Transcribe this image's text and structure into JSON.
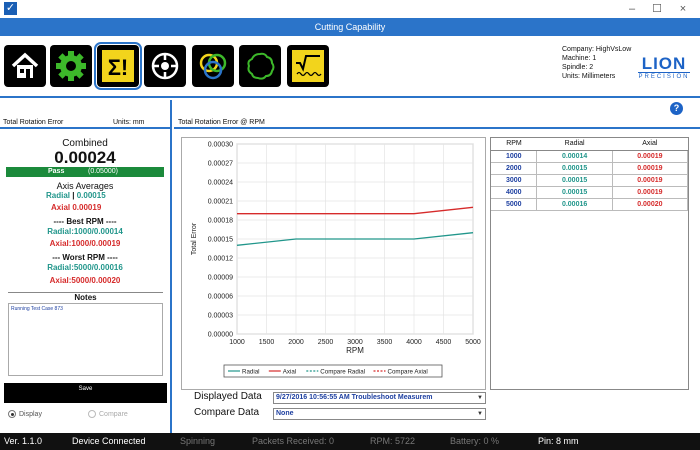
{
  "window": {
    "title": "Cutting Capability",
    "minimize": "–",
    "maximize": "☐",
    "close": "×"
  },
  "toolbar": {
    "buttons": [
      "home-icon",
      "gear-icon",
      "sigma-icon",
      "spindle-icon",
      "circles-icon",
      "lobed-circle-icon",
      "signal-icon"
    ]
  },
  "info": {
    "company": "Company: HighVsLow",
    "machine": "Machine: 1",
    "spindle": "Spindle: 2",
    "units": "Units: Millimeters"
  },
  "logo": {
    "line1": "LION",
    "line2": "PRECISION"
  },
  "left": {
    "header": "Total Rotation Error",
    "units": "Units: mm",
    "combined_label": "Combined",
    "combined_value": "0.00024",
    "pass_label": "Pass",
    "pass_threshold": "(0.05000)",
    "axis_averages_label": "Axis Averages",
    "radial_avg_label": "Radial",
    "radial_avg_value": "0.00015",
    "axial_avg_label": "Axial",
    "axial_avg_value": "0.00019",
    "best_rpm_label": "---- Best RPM ----",
    "best_radial": "Radial:1000/0.00014",
    "best_axial": "Axial:1000/0.00019",
    "worst_rpm_label": "--- Worst RPM ----",
    "worst_radial": "Radial:5000/0.00016",
    "worst_axial": "Axial:5000/0.00020",
    "notes_label": "Notes",
    "notes_text": "Running Test Case 873",
    "save_label": "Save",
    "display_label": "Display",
    "compare_label": "Compare"
  },
  "right": {
    "header": "Total Rotation Error @ RPM",
    "help": "?",
    "table": {
      "headers": [
        "RPM",
        "Radial",
        "Axial"
      ],
      "rows": [
        [
          "1000",
          "0.00014",
          "0.00019"
        ],
        [
          "2000",
          "0.00015",
          "0.00019"
        ],
        [
          "3000",
          "0.00015",
          "0.00019"
        ],
        [
          "4000",
          "0.00015",
          "0.00019"
        ],
        [
          "5000",
          "0.00016",
          "0.00020"
        ]
      ]
    },
    "displayed_data_label": "Displayed Data",
    "displayed_data_value": "9/27/2016 10:56:55 AM Troubleshoot Measurem",
    "compare_data_label": "Compare Data",
    "compare_data_value": "None"
  },
  "chart_data": {
    "type": "line",
    "x": [
      1000,
      2000,
      3000,
      4000,
      5000
    ],
    "series": [
      {
        "name": "Radial",
        "values": [
          0.00014,
          0.00015,
          0.00015,
          0.00015,
          0.00016
        ],
        "color": "#21968b"
      },
      {
        "name": "Axial",
        "values": [
          0.00019,
          0.00019,
          0.00019,
          0.00019,
          0.0002
        ],
        "color": "#d62b2b"
      }
    ],
    "legend": [
      "Radial",
      "Axial",
      "Compare Radial",
      "Compare Axial"
    ],
    "xlabel": "RPM",
    "ylabel": "Total Error",
    "xlim": [
      1000,
      5000
    ],
    "ylim": [
      0,
      0.0003
    ],
    "xticks": [
      "1000",
      "1500",
      "2000",
      "2500",
      "3000",
      "3500",
      "4000",
      "4500",
      "5000"
    ],
    "yticks": [
      "0.00000",
      "0.00003",
      "0.00006",
      "0.00009",
      "0.00012",
      "0.00015",
      "0.00018",
      "0.00021",
      "0.00024",
      "0.00027",
      "0.00030"
    ],
    "grid": true,
    "legend_position": "bottom"
  },
  "status": {
    "version": "Ver. 1.1.0",
    "device": "Device Connected",
    "spinning": "Spinning",
    "packets": "Packets Received:  0",
    "rpm": "RPM:  5722",
    "battery": "Battery:  0  %",
    "pin": "Pin: 8 mm"
  },
  "colors": {
    "accent": "#2b74c9",
    "radial": "#21968b",
    "axial": "#d62b2b",
    "pass": "#1b8a3b"
  }
}
